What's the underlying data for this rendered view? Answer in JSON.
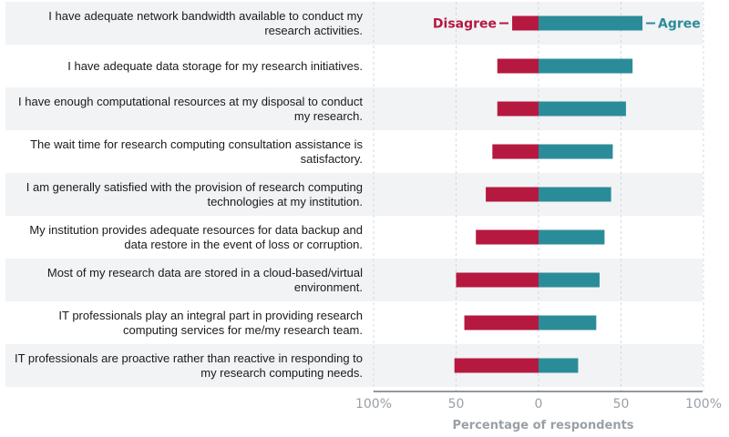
{
  "chart_data": {
    "type": "bar",
    "orientation": "horizontal-diverging",
    "xlabel": "Percentage of respondents",
    "xlim": [
      -100,
      100
    ],
    "x_ticks": [
      {
        "value": -100,
        "label": "100%"
      },
      {
        "value": -50,
        "label": "50"
      },
      {
        "value": 0,
        "label": "0"
      },
      {
        "value": 50,
        "label": "50"
      },
      {
        "value": 100,
        "label": "100%"
      }
    ],
    "grid": "vertical-dashed",
    "categories": [
      "I have adequate network bandwidth available to conduct my research activities.",
      "I have adequate data storage for my research initiatives.",
      "I have enough computational resources at my disposal to conduct my research.",
      "The wait time for research computing consultation assistance is satisfactory.",
      "I am generally satisfied with the provision of research computing technologies at my institution.",
      "My institution provides adequate resources for data backup and data restore in the event of loss or corruption.",
      "Most of my research data are stored in a cloud-based/virtual environment.",
      "IT professionals play an integral part in providing research computing services for me/my research team.",
      "IT professionals are proactive rather than reactive in responding to my research computing needs."
    ],
    "series": [
      {
        "name": "Disagree",
        "color": "#b5193f",
        "values": [
          16,
          25,
          25,
          28,
          32,
          38,
          50,
          45,
          51
        ]
      },
      {
        "name": "Agree",
        "color": "#2b8c99",
        "values": [
          63,
          57,
          53,
          45,
          44,
          40,
          37,
          35,
          24
        ]
      }
    ],
    "legend": "on-chart-top"
  }
}
